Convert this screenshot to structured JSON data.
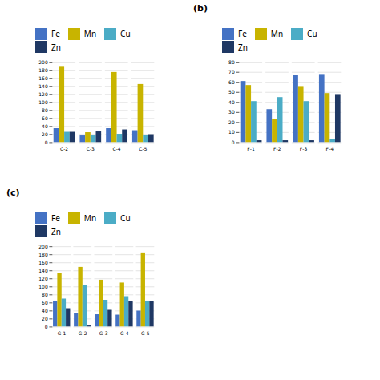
{
  "chart_data": [
    {
      "type": "bar",
      "categories": [
        "C-2",
        "C-3",
        "C-4",
        "C-5"
      ],
      "series": [
        {
          "name": "Fe",
          "color": "#4472C4",
          "values": [
            35,
            17,
            35,
            30
          ]
        },
        {
          "name": "Mn",
          "color": "#C8B400",
          "values": [
            190,
            25,
            175,
            145
          ]
        },
        {
          "name": "Cu",
          "color": "#4BACC6",
          "values": [
            26,
            17,
            21,
            19
          ]
        },
        {
          "name": "Zn",
          "color": "#1F3864",
          "values": [
            26,
            27,
            32,
            20
          ]
        }
      ],
      "ylim": [
        0,
        200
      ],
      "yticks": [
        0,
        20,
        40,
        60,
        80,
        100,
        120,
        140,
        160,
        180,
        200
      ],
      "grid": true,
      "legend": "top"
    },
    {
      "type": "bar",
      "title": "(b)",
      "categories": [
        "F-1",
        "F-2",
        "F-3",
        "F-4"
      ],
      "series": [
        {
          "name": "Fe",
          "color": "#4472C4",
          "values": [
            61,
            33,
            67,
            68
          ]
        },
        {
          "name": "Mn",
          "color": "#C8B400",
          "values": [
            57,
            23,
            56,
            49
          ]
        },
        {
          "name": "Cu",
          "color": "#4BACC6",
          "values": [
            41,
            45,
            41,
            3
          ]
        },
        {
          "name": "Zn",
          "color": "#1F3864",
          "values": [
            2,
            2,
            2,
            48
          ]
        }
      ],
      "ylim": [
        0,
        80
      ],
      "yticks": [
        0,
        10,
        20,
        30,
        40,
        50,
        60,
        70,
        80
      ],
      "grid": true,
      "legend": "top"
    },
    {
      "type": "bar",
      "title": "(c)",
      "categories": [
        "G-1",
        "G-2",
        "G-3",
        "G-4",
        "G-5"
      ],
      "series": [
        {
          "name": "Fe",
          "color": "#4472C4",
          "values": [
            65,
            35,
            31,
            30,
            40
          ]
        },
        {
          "name": "Mn",
          "color": "#C8B400",
          "values": [
            133,
            149,
            117,
            110,
            185
          ]
        },
        {
          "name": "Cu",
          "color": "#4BACC6",
          "values": [
            70,
            103,
            67,
            76,
            65
          ]
        },
        {
          "name": "Zn",
          "color": "#1F3864",
          "values": [
            46,
            3,
            42,
            65,
            64
          ]
        }
      ],
      "ylim": [
        0,
        200
      ],
      "yticks": [
        0,
        20,
        40,
        60,
        80,
        100,
        120,
        140,
        160,
        180,
        200
      ],
      "grid": true,
      "legend": "top"
    }
  ]
}
